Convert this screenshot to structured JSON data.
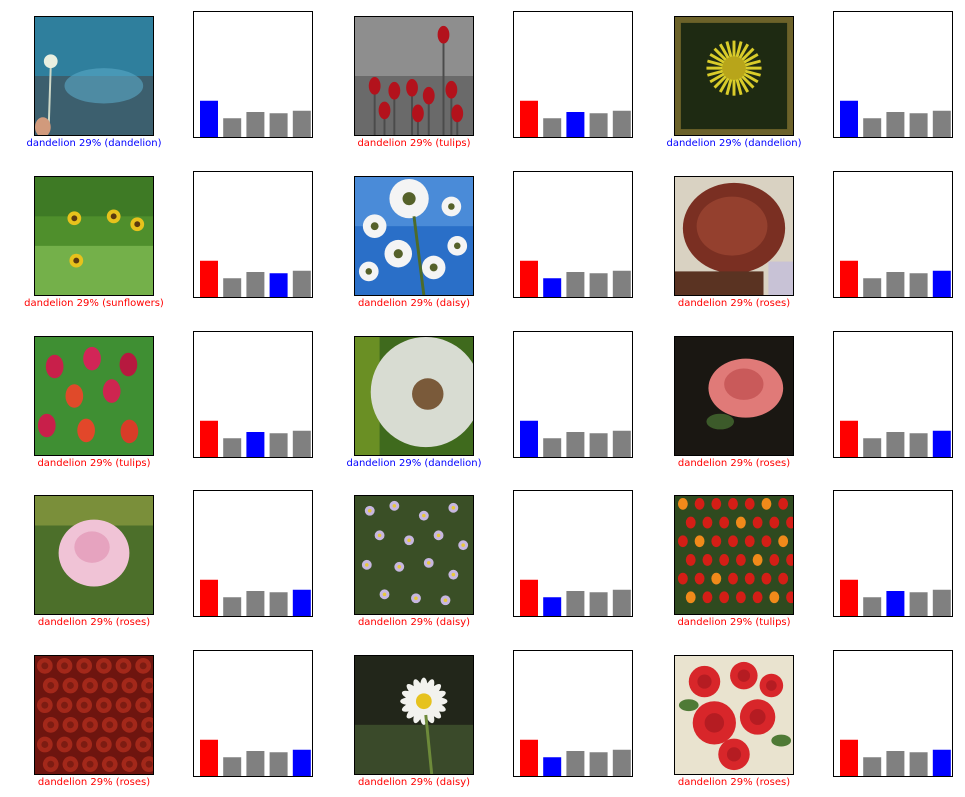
{
  "chart_data": {
    "type": "bar",
    "colors": {
      "correct": "#0000ff",
      "incorrect": "#ff0000",
      "other": "#808080"
    },
    "class_names": [
      "dandelion",
      "daisy",
      "tulips",
      "sunflowers",
      "roses"
    ],
    "ylim": [
      0,
      1
    ],
    "items": [
      {
        "image": "dandelion-seed-head-photo",
        "predicted": "dandelion",
        "confidence": "29%",
        "true_label": "dandelion",
        "predicted_index": 0,
        "true_index": 0,
        "caption": "dandelion 29% (dandelion)",
        "correct": true,
        "values": [
          0.29,
          0.15,
          0.2,
          0.19,
          0.21
        ]
      },
      {
        "image": "red-tulips-photo",
        "predicted": "dandelion",
        "confidence": "29%",
        "true_label": "tulips",
        "predicted_index": 0,
        "true_index": 2,
        "caption": "dandelion 29% (tulips)",
        "correct": false,
        "values": [
          0.29,
          0.15,
          0.2,
          0.19,
          0.21
        ]
      },
      {
        "image": "yellow-dandelion-framed-photo",
        "predicted": "dandelion",
        "confidence": "29%",
        "true_label": "dandelion",
        "predicted_index": 0,
        "true_index": 0,
        "caption": "dandelion 29% (dandelion)",
        "correct": true,
        "values": [
          0.29,
          0.15,
          0.2,
          0.19,
          0.21
        ]
      },
      {
        "image": "sunflowers-field-photo",
        "predicted": "dandelion",
        "confidence": "29%",
        "true_label": "sunflowers",
        "predicted_index": 0,
        "true_index": 3,
        "caption": "dandelion 29% (sunflowers)",
        "correct": false,
        "values": [
          0.29,
          0.15,
          0.2,
          0.19,
          0.21
        ]
      },
      {
        "image": "daisies-blue-sky-photo",
        "predicted": "dandelion",
        "confidence": "29%",
        "true_label": "daisy",
        "predicted_index": 0,
        "true_index": 1,
        "caption": "dandelion 29% (daisy)",
        "correct": false,
        "values": [
          0.29,
          0.15,
          0.2,
          0.19,
          0.21
        ]
      },
      {
        "image": "dried-red-flower-photo",
        "predicted": "dandelion",
        "confidence": "29%",
        "true_label": "roses",
        "predicted_index": 0,
        "true_index": 4,
        "caption": "dandelion 29% (roses)",
        "correct": false,
        "values": [
          0.29,
          0.15,
          0.2,
          0.19,
          0.21
        ]
      },
      {
        "image": "colorful-tulips-photo",
        "predicted": "dandelion",
        "confidence": "29%",
        "true_label": "tulips",
        "predicted_index": 0,
        "true_index": 2,
        "caption": "dandelion 29% (tulips)",
        "correct": false,
        "values": [
          0.29,
          0.15,
          0.2,
          0.19,
          0.21
        ]
      },
      {
        "image": "dandelion-puffball-photo",
        "predicted": "dandelion",
        "confidence": "29%",
        "true_label": "dandelion",
        "predicted_index": 0,
        "true_index": 0,
        "caption": "dandelion 29% (dandelion)",
        "correct": true,
        "values": [
          0.29,
          0.15,
          0.2,
          0.19,
          0.21
        ]
      },
      {
        "image": "pink-rose-dark-photo",
        "predicted": "dandelion",
        "confidence": "29%",
        "true_label": "roses",
        "predicted_index": 0,
        "true_index": 4,
        "caption": "dandelion 29% (roses)",
        "correct": false,
        "values": [
          0.29,
          0.15,
          0.2,
          0.19,
          0.21
        ]
      },
      {
        "image": "pale-pink-rose-photo",
        "predicted": "dandelion",
        "confidence": "29%",
        "true_label": "roses",
        "predicted_index": 0,
        "true_index": 4,
        "caption": "dandelion 29% (roses)",
        "correct": false,
        "values": [
          0.29,
          0.15,
          0.2,
          0.19,
          0.21
        ]
      },
      {
        "image": "small-purple-daisies-photo",
        "predicted": "dandelion",
        "confidence": "29%",
        "true_label": "daisy",
        "predicted_index": 0,
        "true_index": 1,
        "caption": "dandelion 29% (daisy)",
        "correct": false,
        "values": [
          0.29,
          0.15,
          0.2,
          0.19,
          0.21
        ]
      },
      {
        "image": "red-tulip-field-photo",
        "predicted": "dandelion",
        "confidence": "29%",
        "true_label": "tulips",
        "predicted_index": 0,
        "true_index": 2,
        "caption": "dandelion 29% (tulips)",
        "correct": false,
        "values": [
          0.29,
          0.15,
          0.2,
          0.19,
          0.21
        ]
      },
      {
        "image": "red-roses-mass-photo",
        "predicted": "dandelion",
        "confidence": "29%",
        "true_label": "roses",
        "predicted_index": 0,
        "true_index": 4,
        "caption": "dandelion 29% (roses)",
        "correct": false,
        "values": [
          0.29,
          0.15,
          0.2,
          0.19,
          0.21
        ]
      },
      {
        "image": "single-daisy-photo",
        "predicted": "dandelion",
        "confidence": "29%",
        "true_label": "daisy",
        "predicted_index": 0,
        "true_index": 1,
        "caption": "dandelion 29% (daisy)",
        "correct": false,
        "values": [
          0.29,
          0.15,
          0.2,
          0.19,
          0.21
        ]
      },
      {
        "image": "vintage-roses-illustration",
        "predicted": "dandelion",
        "confidence": "29%",
        "true_label": "roses",
        "predicted_index": 0,
        "true_index": 4,
        "caption": "dandelion 29% (roses)",
        "correct": false,
        "values": [
          0.29,
          0.15,
          0.2,
          0.19,
          0.21
        ]
      }
    ]
  }
}
